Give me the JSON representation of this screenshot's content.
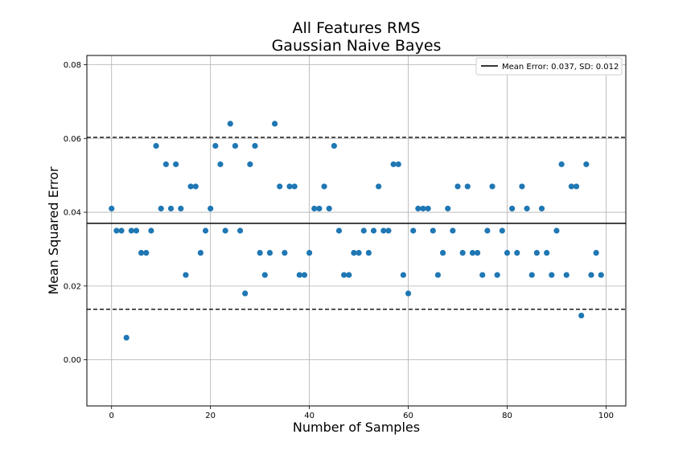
{
  "chart_data": {
    "type": "scatter",
    "title": [
      "All Features RMS",
      "Gaussian Naive Bayes"
    ],
    "xlabel": "Number of Samples",
    "ylabel": "Mean Squared Error",
    "xlim": [
      -5,
      104
    ],
    "ylim": [
      -0.0125,
      0.0825
    ],
    "xticks": [
      0,
      20,
      40,
      60,
      80,
      100
    ],
    "yticks": [
      0.0,
      0.02,
      0.04,
      0.06,
      0.08
    ],
    "ytick_labels": [
      "0.00",
      "0.02",
      "0.04",
      "0.06",
      "0.08"
    ],
    "grid": true,
    "legend": {
      "placement": "top-right",
      "entries": [
        "Mean Error: 0.037, SD: 0.012"
      ]
    },
    "mean_line": 0.037,
    "sd_lines": [
      0.0137,
      0.0603
    ],
    "point_color": "#1f77b4",
    "series": [
      {
        "x": [
          0,
          1,
          2,
          3,
          4,
          5,
          6,
          7,
          8,
          9,
          10,
          11,
          12,
          13,
          14,
          15,
          16,
          17,
          18,
          19,
          20,
          21,
          22,
          23,
          24,
          25,
          26,
          27,
          28,
          29,
          30,
          31,
          32,
          33,
          34,
          35,
          36,
          37,
          38,
          39,
          40,
          41,
          42,
          43,
          44,
          45,
          46,
          47,
          48,
          49,
          50,
          51,
          52,
          53,
          54,
          55,
          56,
          57,
          58,
          59,
          60,
          61,
          62,
          63,
          64,
          65,
          66,
          67,
          68,
          69,
          70,
          71,
          72,
          73,
          74,
          75,
          76,
          77,
          78,
          79,
          80,
          81,
          82,
          83,
          84,
          85,
          86,
          87,
          88,
          89,
          90,
          91,
          92,
          93,
          94,
          95,
          96,
          97,
          98,
          99
        ],
        "y": [
          0.041,
          0.035,
          0.035,
          0.006,
          0.035,
          0.035,
          0.029,
          0.029,
          0.035,
          0.058,
          0.041,
          0.053,
          0.041,
          0.053,
          0.041,
          0.023,
          0.047,
          0.047,
          0.029,
          0.035,
          0.041,
          0.058,
          0.053,
          0.035,
          0.064,
          0.058,
          0.035,
          0.018,
          0.053,
          0.058,
          0.029,
          0.023,
          0.029,
          0.064,
          0.047,
          0.029,
          0.047,
          0.047,
          0.023,
          0.023,
          0.029,
          0.041,
          0.041,
          0.047,
          0.041,
          0.058,
          0.035,
          0.023,
          0.023,
          0.029,
          0.029,
          0.035,
          0.029,
          0.035,
          0.047,
          0.035,
          0.035,
          0.053,
          0.053,
          0.023,
          0.018,
          0.035,
          0.041,
          0.041,
          0.041,
          0.035,
          0.023,
          0.029,
          0.041,
          0.035,
          0.047,
          0.029,
          0.047,
          0.029,
          0.029,
          0.023,
          0.035,
          0.047,
          0.023,
          0.035,
          0.029,
          0.041,
          0.029,
          0.047,
          0.041,
          0.023,
          0.029,
          0.041,
          0.029,
          0.023,
          0.035,
          0.053,
          0.023,
          0.047,
          0.047,
          0.012,
          0.053,
          0.023,
          0.029,
          0.023
        ]
      }
    ]
  }
}
